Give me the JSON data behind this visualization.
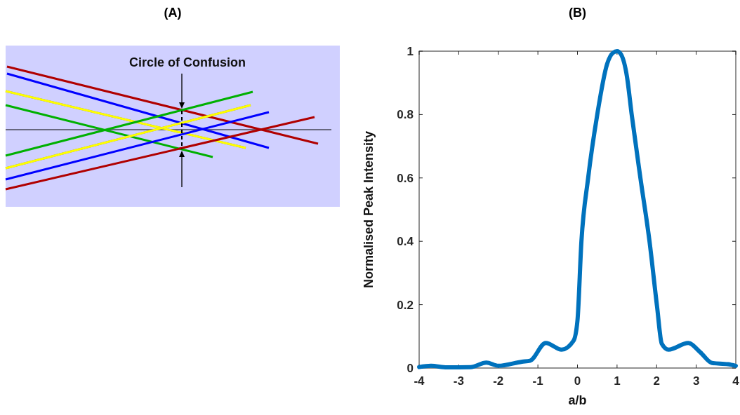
{
  "chart_data": [
    {
      "type": "other",
      "title": "(A)",
      "annotations": [
        "Circle of Confusion"
      ]
    },
    {
      "type": "line",
      "title": "(B)",
      "xlabel": "a/b",
      "ylabel": "Normalised Peak Intensity",
      "xlim": [
        -4,
        4
      ],
      "ylim": [
        0,
        1
      ],
      "xticks": [
        -4,
        -3,
        -2,
        -1,
        0,
        1,
        2,
        3,
        4
      ],
      "yticks": [
        0,
        0.2,
        0.4,
        0.6,
        0.8,
        1
      ],
      "grid": false,
      "marker": "none",
      "line_style": "solid",
      "x": [
        -4,
        -3.7,
        -3.3,
        -2.7,
        -2.3,
        -2,
        -1.4,
        -1.2,
        -0.8,
        -0.4,
        -0.1,
        0,
        0.1,
        0.27,
        0.5,
        0.75,
        0.9,
        1,
        1.1,
        1.25,
        1.37,
        1.59,
        1.82,
        2.01,
        2.13,
        2.3,
        2.8,
        3.1,
        3.4,
        3.8,
        4
      ],
      "series": [
        {
          "color": "#0072bd",
          "values": [
            0.003,
            0.007,
            0.002,
            0.003,
            0.017,
            0.007,
            0.02,
            0.023,
            0.079,
            0.058,
            0.086,
            0.15,
            0.4,
            0.6,
            0.8,
            0.96,
            0.995,
            1,
            0.99,
            0.92,
            0.8,
            0.6,
            0.4,
            0.195,
            0.077,
            0.058,
            0.079,
            0.05,
            0.016,
            0.012,
            0.007
          ]
        }
      ]
    }
  ]
}
